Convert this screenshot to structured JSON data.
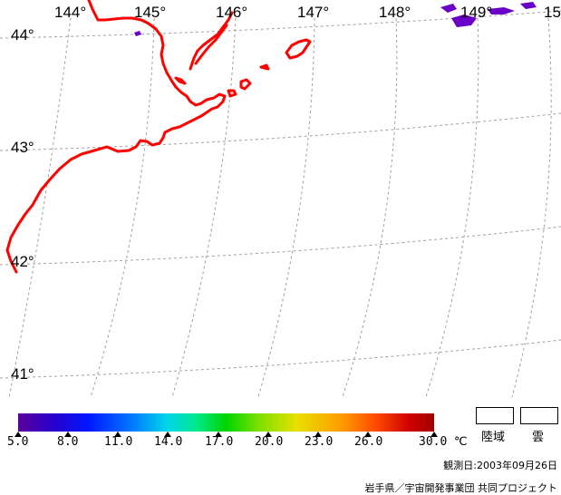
{
  "map": {
    "lon_labels": [
      "144°",
      "145°",
      "146°",
      "147°",
      "148°",
      "149°",
      "15"
    ],
    "lat_labels": [
      "44°",
      "43°",
      "42°",
      "41°"
    ],
    "coast_color": "#ff0000",
    "cloud_color": "#6a00c8",
    "grid_color": "#a0a0a0"
  },
  "legend": {
    "ticks": [
      "5.0",
      "8.0",
      "11.0",
      "14.0",
      "17.0",
      "20.0",
      "23.0",
      "26.0",
      "30.0"
    ],
    "unit": "℃",
    "land_label": "陸域",
    "cloud_label": "雲",
    "colormap_stops": [
      "#5b009d",
      "#0018ff",
      "#00d8e8",
      "#00d400",
      "#e8e000",
      "#ff9a00",
      "#d00000",
      "#a00000"
    ]
  },
  "footer": {
    "observation_date": "観測日:2003年09月26日",
    "credit": "岩手県／宇宙開発事業団 共同プロジェクト"
  }
}
